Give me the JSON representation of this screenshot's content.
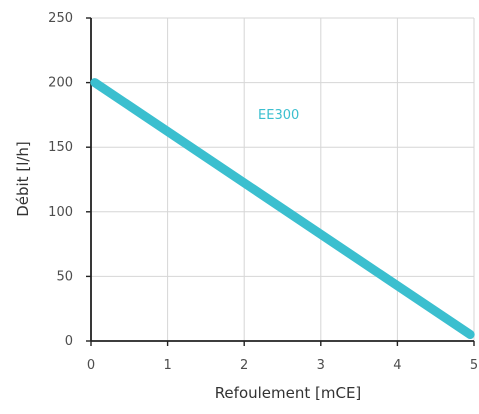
{
  "chart_data": {
    "type": "line",
    "xlabel": "Refoulement [mCE]",
    "ylabel": "Débit [l/h]",
    "xlim": [
      0,
      5
    ],
    "ylim": [
      0,
      250
    ],
    "x_ticks": [
      "0",
      "1",
      "2",
      "3",
      "4",
      "5"
    ],
    "y_ticks": [
      "0",
      "50",
      "100",
      "150",
      "200",
      "250"
    ],
    "grid": true,
    "series": [
      {
        "name": "EE300",
        "color": "#3bbfcf",
        "points": [
          {
            "x": 0.05,
            "y": 200
          },
          {
            "x": 4.95,
            "y": 5
          }
        ]
      }
    ]
  }
}
